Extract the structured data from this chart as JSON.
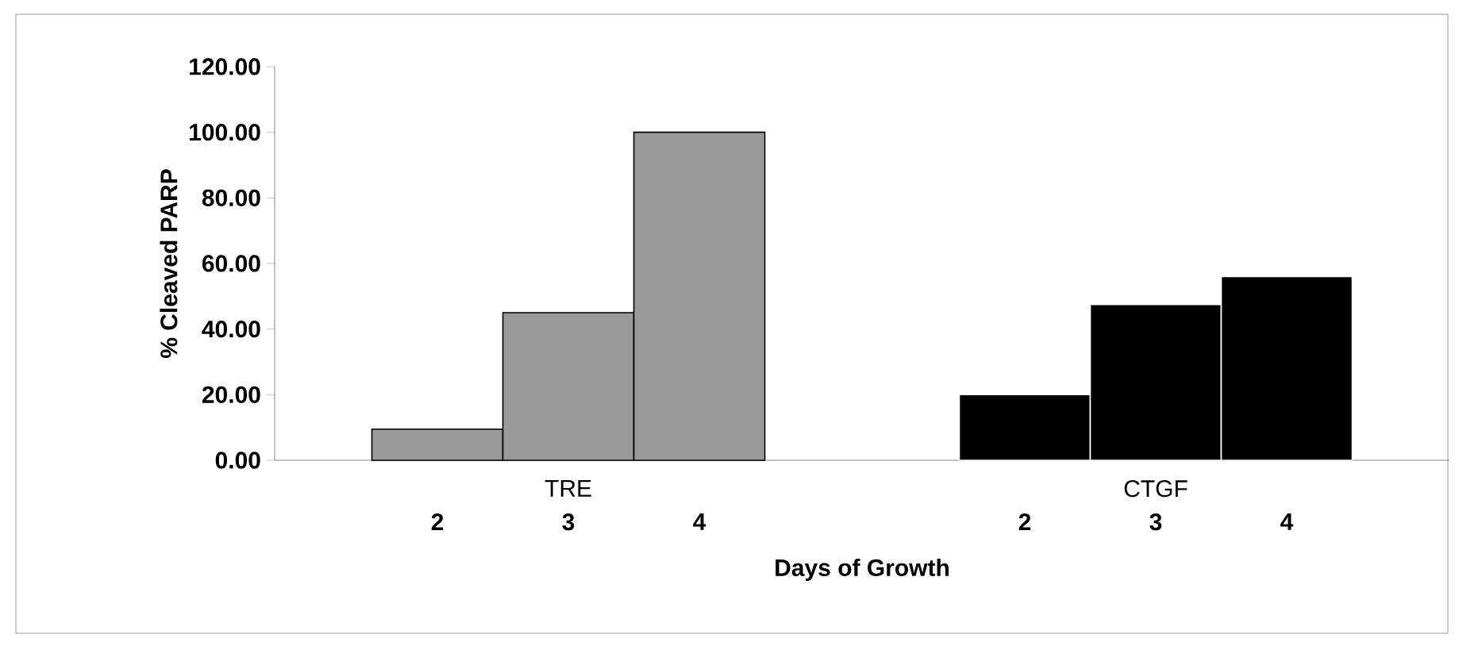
{
  "chart_data": {
    "type": "bar",
    "xlabel": "Days of Growth",
    "ylabel": "% Cleaved PARP",
    "categories": [
      "TRE",
      "CTGF"
    ],
    "series": [
      {
        "name": "2",
        "colors": [
          "#9a9a9a",
          "#000000"
        ],
        "values": [
          9.5,
          20
        ]
      },
      {
        "name": "3",
        "colors": [
          "#9a9a9a",
          "#000000"
        ],
        "values": [
          45,
          47.5
        ]
      },
      {
        "name": "4",
        "colors": [
          "#9a9a9a",
          "#000000"
        ],
        "values": [
          100,
          56
        ]
      }
    ],
    "ylim": [
      0,
      120
    ],
    "yticks": [
      {
        "value": 0,
        "label": "0.00"
      },
      {
        "value": 20,
        "label": "20.00"
      },
      {
        "value": 40,
        "label": "40.00"
      },
      {
        "value": 60,
        "label": "60.00"
      },
      {
        "value": 80,
        "label": "80.00"
      },
      {
        "value": 100,
        "label": "100.00"
      },
      {
        "value": 120,
        "label": "120.00"
      }
    ],
    "grid": false,
    "legend": false
  }
}
